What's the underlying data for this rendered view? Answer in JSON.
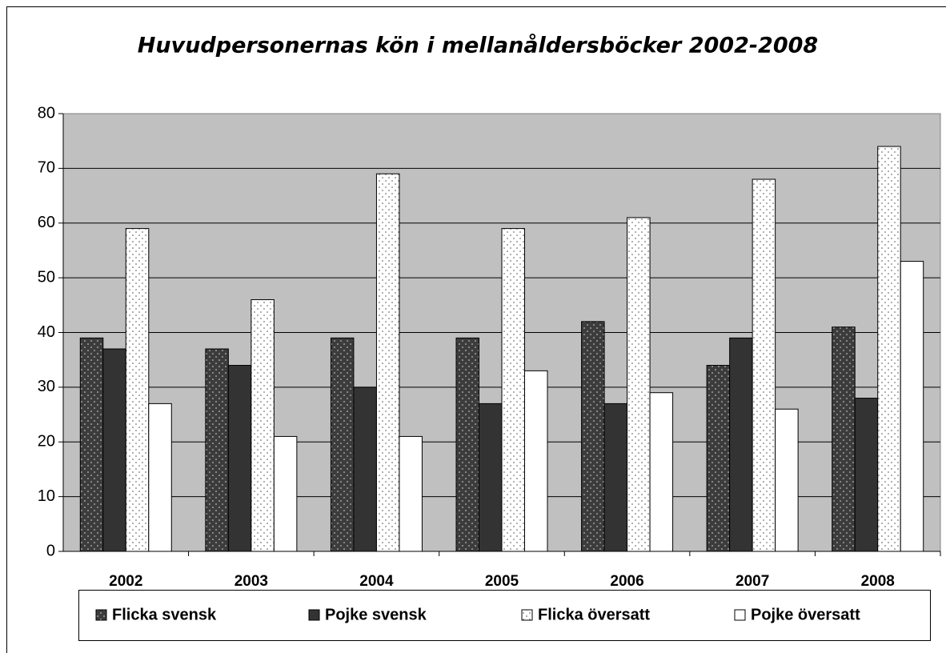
{
  "chart_data": {
    "type": "bar",
    "title": "Huvudpersonernas kön i mellanåldersböcker 2002-2008",
    "categories": [
      "2002",
      "2003",
      "2004",
      "2005",
      "2006",
      "2007",
      "2008"
    ],
    "series": [
      {
        "name": "Flicka svensk",
        "color": "#3c3c3c",
        "dotted": true,
        "values": [
          39,
          37,
          39,
          39,
          42,
          34,
          41
        ]
      },
      {
        "name": "Pojke svensk",
        "color": "#333333",
        "dotted": false,
        "values": [
          37,
          34,
          30,
          27,
          27,
          39,
          28
        ]
      },
      {
        "name": "Flicka översatt",
        "color": "#ffffff",
        "dotted": true,
        "values": [
          59,
          46,
          69,
          59,
          61,
          68,
          74
        ]
      },
      {
        "name": "Pojke översatt",
        "color": "#ffffff",
        "dotted": false,
        "values": [
          27,
          21,
          21,
          33,
          29,
          26,
          53
        ]
      }
    ],
    "ylim": [
      0,
      80
    ],
    "yticks": [
      0,
      10,
      20,
      30,
      40,
      50,
      60,
      70,
      80
    ],
    "grid": true,
    "legend": "bottom"
  }
}
